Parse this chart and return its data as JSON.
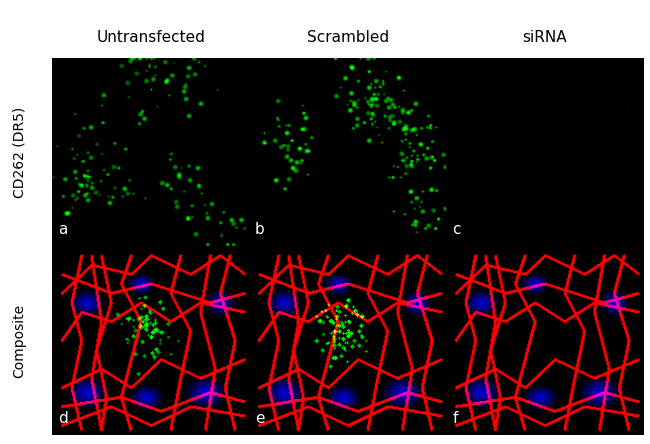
{
  "title": "",
  "col_labels": [
    "Untransfected",
    "Scrambled",
    "siRNA"
  ],
  "row_labels": [
    "CD262 (DR5)",
    "Composite"
  ],
  "panel_labels": [
    "a",
    "b",
    "c",
    "d",
    "e",
    "f"
  ],
  "background_color": "#000000",
  "text_color": "#ffffff",
  "label_color": "#ffffff",
  "top_label_color": "#000000",
  "figsize": [
    6.5,
    4.44
  ],
  "dpi": 100
}
